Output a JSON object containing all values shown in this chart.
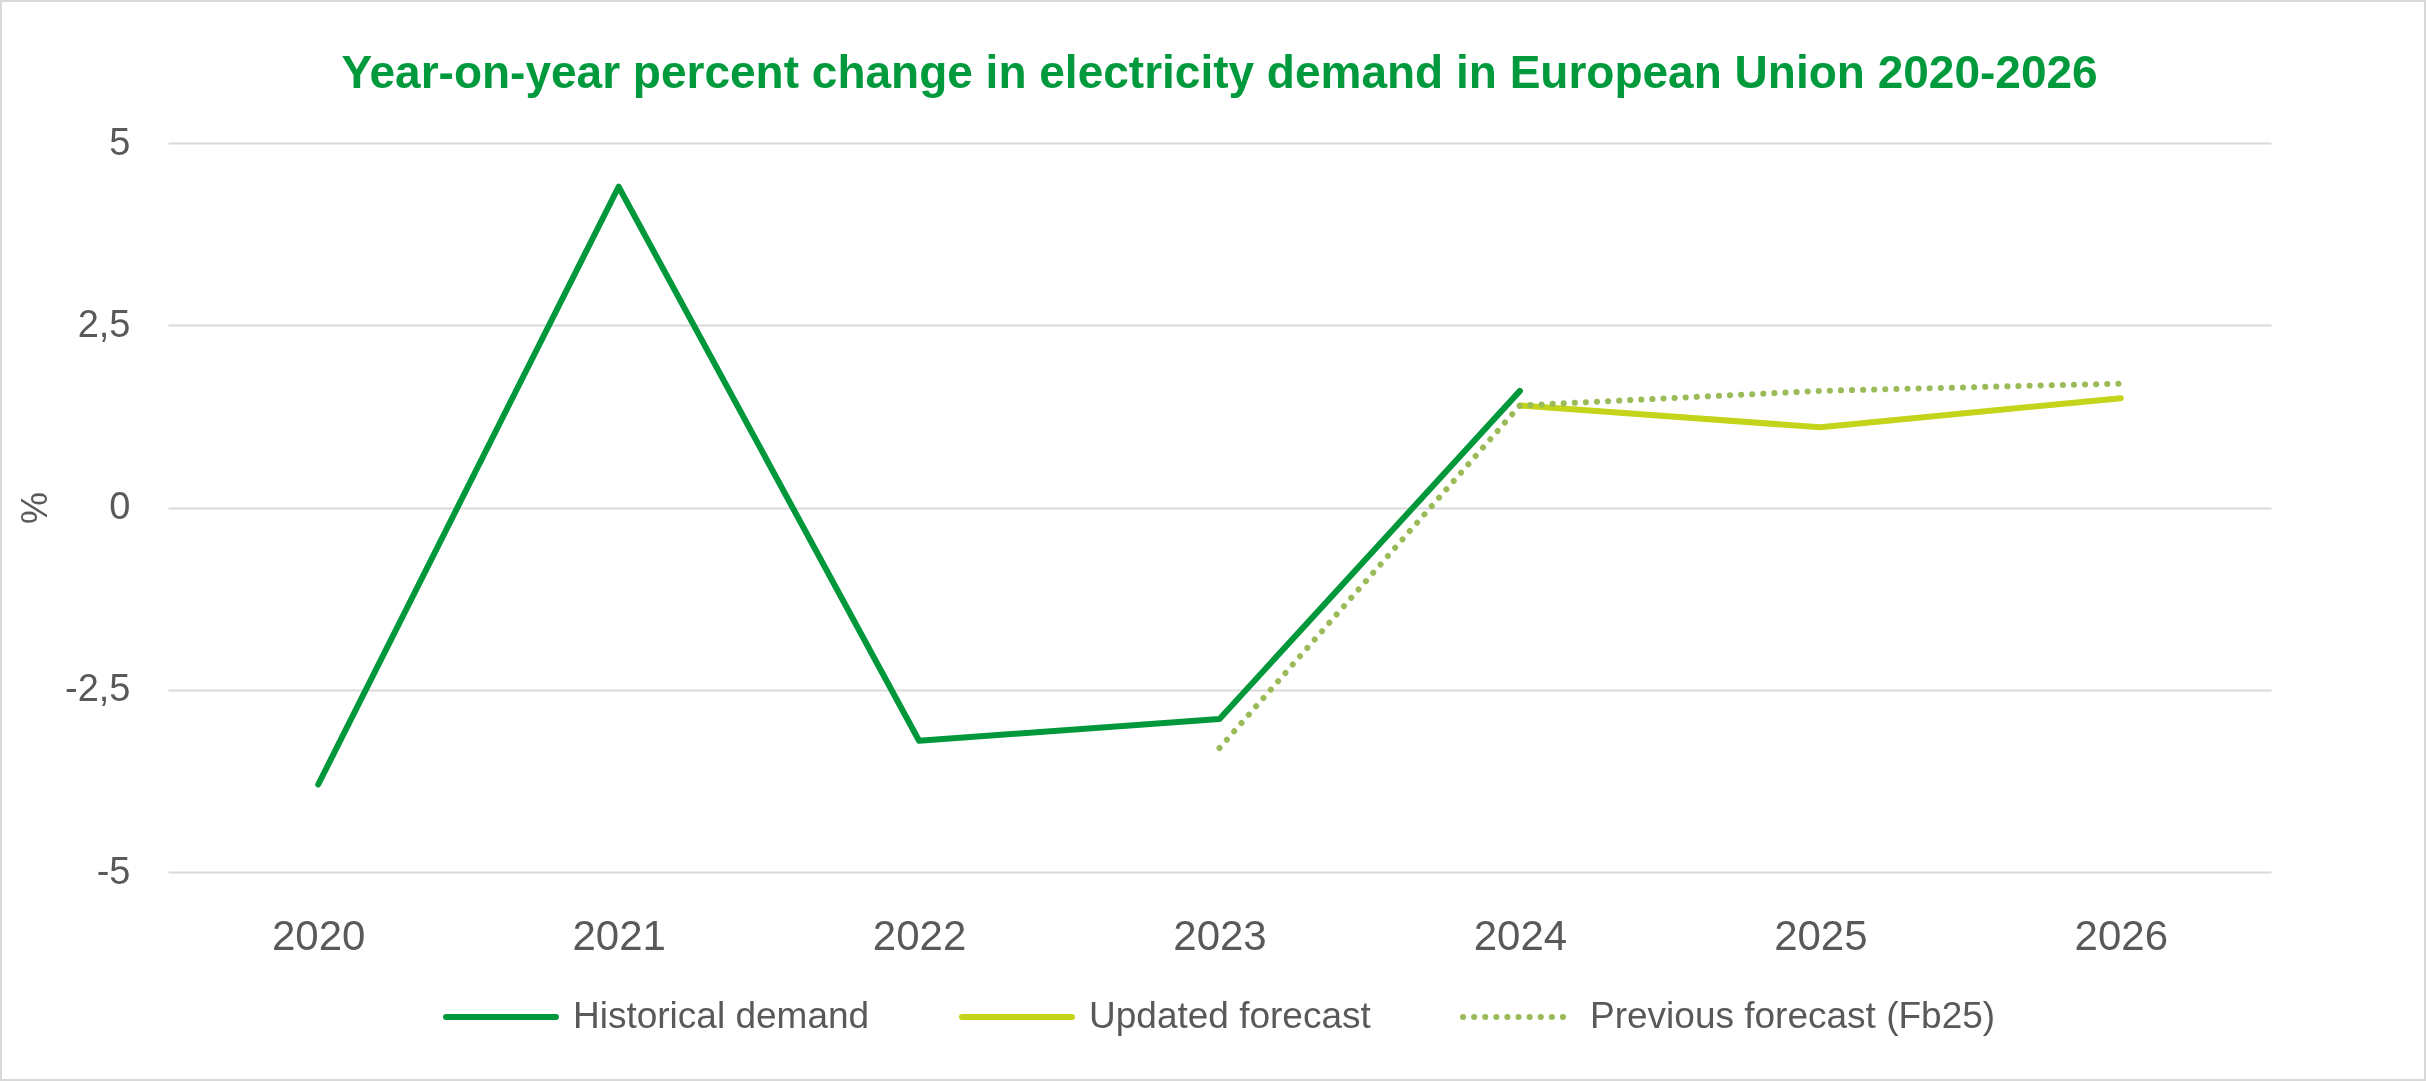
{
  "chart_data": {
    "type": "line",
    "title": "Year-on-year percent change in electricity demand in European Union  2020-2026",
    "ylabel": "%",
    "categories": [
      "2020",
      "2021",
      "2022",
      "2023",
      "2024",
      "2025",
      "2026"
    ],
    "series": [
      {
        "name": "Historical demand",
        "color": "#00983a",
        "values": [
          -3.8,
          4.4,
          -3.2,
          -2.9,
          1.6,
          null,
          null
        ]
      },
      {
        "name": "Updated forecast",
        "color": "#c4d41a",
        "values": [
          null,
          null,
          null,
          null,
          1.4,
          1.1,
          1.5
        ]
      },
      {
        "name": "Previous forecast (Fb25)",
        "color": "#9bbb59",
        "line_style": "dotted",
        "values": [
          null,
          null,
          null,
          -3.3,
          1.4,
          1.6,
          1.7
        ]
      }
    ],
    "ylim": [
      -5,
      5
    ],
    "yticks": [
      -5,
      {
        "value": -2.5,
        "label": "-2,5"
      },
      0,
      {
        "value": 2.5,
        "label": "2,5"
      },
      5
    ],
    "grid": "y",
    "legend": "bottom",
    "line_style": "solid",
    "marker": "none"
  }
}
